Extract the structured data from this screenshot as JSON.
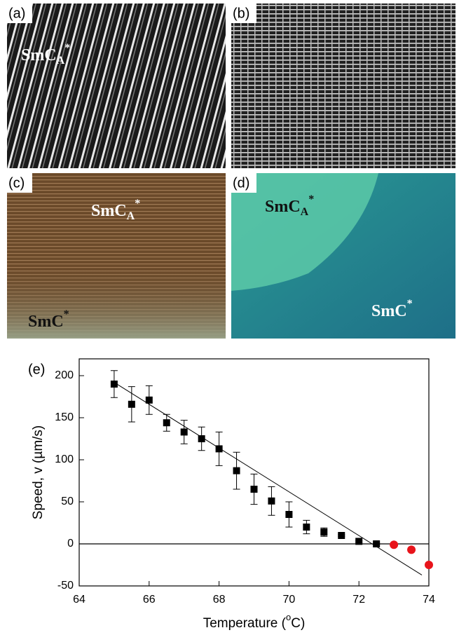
{
  "images": [
    {
      "label": "(a)",
      "phase": {
        "base": "SmC",
        "sub": "A",
        "sup": "*"
      }
    },
    {
      "label": "(b)"
    },
    {
      "label": "(c)",
      "phases": [
        {
          "base": "SmC",
          "sub": "A",
          "sup": "*"
        },
        {
          "base": "SmC",
          "sup": "*"
        }
      ]
    },
    {
      "label": "(d)",
      "phases": [
        {
          "base": "SmC",
          "sub": "A",
          "sup": "*"
        },
        {
          "base": "SmC",
          "sup": "*"
        }
      ]
    }
  ],
  "chart_data": {
    "type": "scatter",
    "panel_label": "(e)",
    "ylabel": "Speed, v (µm/s)",
    "xlabel": {
      "before": "Temperature (",
      "sup": "o",
      "after": "C)"
    },
    "xlim": [
      64,
      74
    ],
    "xticks": [
      64,
      66,
      68,
      70,
      72,
      74
    ],
    "ylim": [
      -50,
      220
    ],
    "yticks": [
      -50,
      0,
      50,
      100,
      150,
      200
    ],
    "reference_line": 0,
    "series": [
      {
        "marker": "square",
        "color": "#000000",
        "x": [
          65,
          65.5,
          66,
          66.5,
          67,
          67.5,
          68,
          68.5,
          69,
          69.5,
          70,
          70.5,
          71,
          71.5,
          72,
          72.5
        ],
        "values": [
          190,
          166,
          171,
          144,
          133,
          125,
          113,
          87,
          65,
          51,
          35,
          20,
          14,
          10,
          3,
          0
        ],
        "errors": [
          16,
          21,
          17,
          10,
          14,
          14,
          20,
          22,
          18,
          17,
          15,
          8,
          5,
          1,
          1,
          1
        ]
      },
      {
        "marker": "circle",
        "color": "#e8141b",
        "x": [
          73,
          73.5,
          74
        ],
        "values": [
          -1,
          -7,
          -25
        ]
      }
    ],
    "fit_line": {
      "color": "#000000",
      "x": [
        65,
        73.8
      ],
      "values": [
        192,
        -37
      ]
    }
  }
}
